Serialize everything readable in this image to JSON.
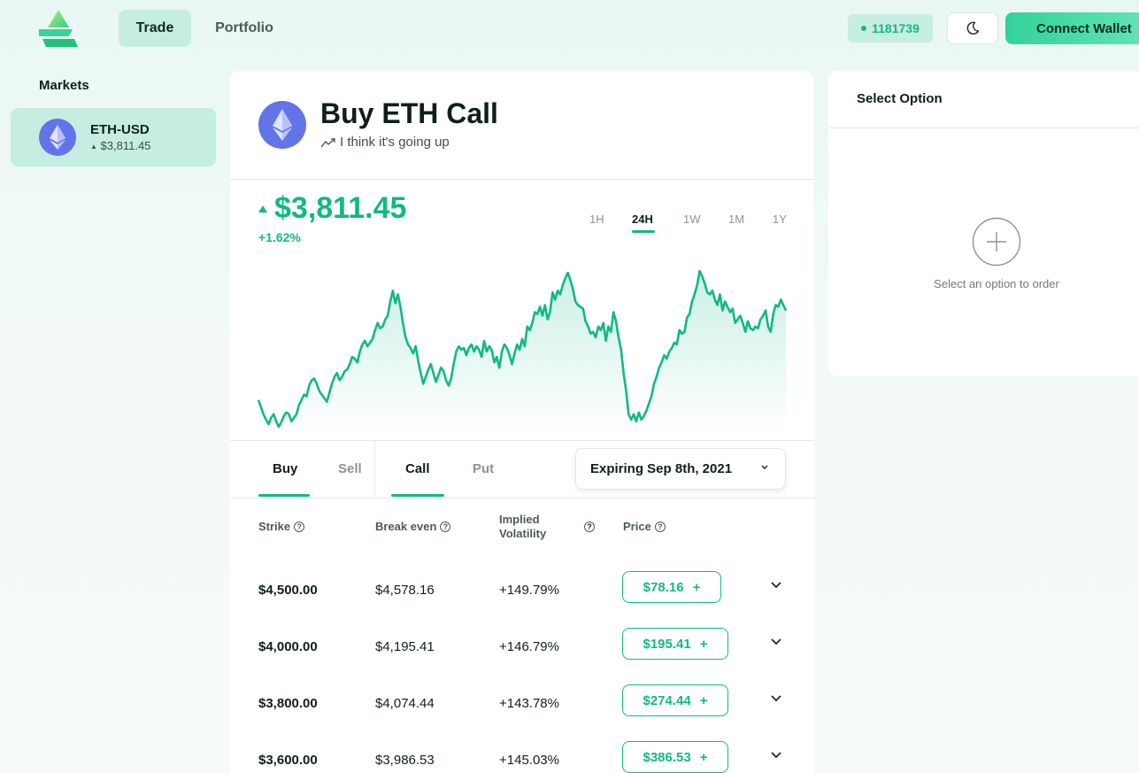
{
  "header": {
    "logo": "app-logo",
    "nav": [
      {
        "label": "Trade",
        "active": true
      },
      {
        "label": "Portfolio",
        "active": false
      }
    ],
    "block_number": "1181739",
    "theme_icon": "moon-icon",
    "connect_label": "Connect Wallet"
  },
  "sidebar": {
    "title": "Markets",
    "markets": [
      {
        "name": "ETH-USD",
        "price": "$3,811.45",
        "icon": "ethereum-icon"
      }
    ]
  },
  "main": {
    "title": "Buy ETH Call",
    "subtitle": "I think it's going up",
    "price": "$3,811.45",
    "change": "+1.62%",
    "ranges": [
      "1H",
      "24H",
      "1W",
      "1M",
      "1Y"
    ],
    "active_range": "24H",
    "side_tabs": [
      {
        "label": "Buy",
        "active": true
      },
      {
        "label": "Sell",
        "active": false
      }
    ],
    "type_tabs": [
      {
        "label": "Call",
        "active": true
      },
      {
        "label": "Put",
        "active": false
      }
    ],
    "expiry": "Expiring Sep 8th, 2021",
    "table": {
      "headers": {
        "strike": "Strike",
        "break_even": "Break even",
        "iv_line1": "Implied",
        "iv_line2": "Volatility",
        "price": "Price"
      },
      "rows": [
        {
          "strike": "$4,500.00",
          "break_even": "$4,578.16",
          "iv": "+149.79%",
          "price": "$78.16"
        },
        {
          "strike": "$4,000.00",
          "break_even": "$4,195.41",
          "iv": "+146.79%",
          "price": "$195.41"
        },
        {
          "strike": "$3,800.00",
          "break_even": "$4,074.44",
          "iv": "+143.78%",
          "price": "$274.44"
        },
        {
          "strike": "$3,600.00",
          "break_even": "$3,986.53",
          "iv": "+145.03%",
          "price": "$386.53"
        }
      ]
    }
  },
  "chart_data": {
    "type": "area",
    "color": "#12b886",
    "values": [
      30,
      22,
      14,
      8,
      3,
      10,
      14,
      6,
      0,
      5,
      12,
      16,
      14,
      6,
      10,
      14,
      24,
      30,
      36,
      34,
      46,
      52,
      54,
      48,
      40,
      36,
      32,
      28,
      38,
      48,
      56,
      60,
      52,
      56,
      62,
      64,
      70,
      78,
      76,
      72,
      84,
      92,
      96,
      90,
      94,
      98,
      108,
      116,
      110,
      112,
      120,
      124,
      140,
      152,
      138,
      148,
      134,
      116,
      100,
      92,
      88,
      82,
      90,
      74,
      60,
      48,
      56,
      64,
      70,
      60,
      50,
      58,
      66,
      62,
      52,
      46,
      54,
      70,
      84,
      90,
      86,
      88,
      80,
      88,
      92,
      84,
      90,
      86,
      78,
      96,
      84,
      90,
      86,
      72,
      78,
      66,
      84,
      92,
      88,
      80,
      70,
      82,
      92,
      86,
      98,
      90,
      112,
      108,
      116,
      128,
      126,
      134,
      124,
      136,
      120,
      128,
      150,
      142,
      152,
      148,
      158,
      166,
      172,
      164,
      154,
      140,
      136,
      134,
      132,
      118,
      112,
      104,
      106,
      100,
      112,
      108,
      116,
      96,
      112,
      106,
      128,
      118,
      100,
      86,
      60,
      40,
      14,
      8,
      14,
      6,
      16,
      8,
      12,
      18,
      26,
      34,
      48,
      56,
      66,
      72,
      80,
      76,
      84,
      88,
      94,
      92,
      108,
      104,
      106,
      122,
      126,
      140,
      148,
      158,
      174,
      168,
      160,
      150,
      148,
      152,
      142,
      136,
      148,
      130,
      140,
      134,
      128,
      132,
      116,
      120,
      124,
      116,
      106,
      118,
      110,
      108,
      112,
      110,
      120,
      124,
      130,
      112,
      106,
      126,
      136,
      134,
      142,
      136,
      130
    ],
    "ylim": [
      0,
      180
    ]
  },
  "right_panel": {
    "title": "Select Option",
    "hint": "Select an option to order",
    "icon": "plus-circle-icon"
  }
}
